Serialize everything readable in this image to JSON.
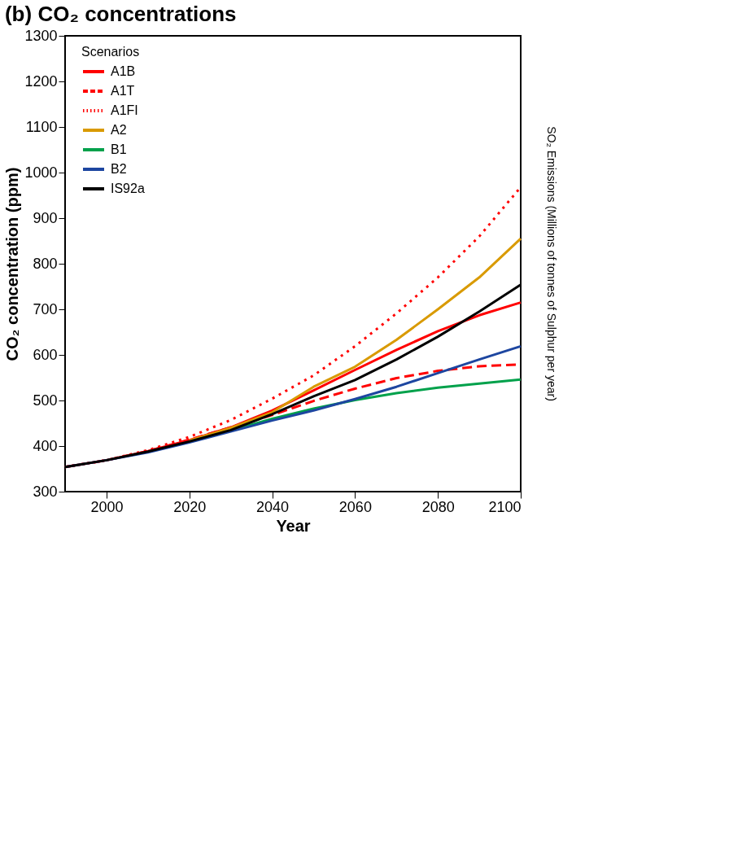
{
  "chart_data": {
    "type": "line",
    "title": "(b) CO₂ concentrations",
    "xlabel": "Year",
    "ylabel": "CO₂ concentration (ppm)",
    "annotations": [
      "SO₂ Emissions (Millions of tonnes of Sulphur per year)"
    ],
    "x": [
      1990,
      2000,
      2010,
      2020,
      2030,
      2040,
      2050,
      2060,
      2070,
      2080,
      2090,
      2100
    ],
    "xlim": [
      1990,
      2100
    ],
    "xticks": [
      2000,
      2020,
      2040,
      2060,
      2080,
      2100
    ],
    "ylim": [
      300,
      1300
    ],
    "yticks": [
      300,
      400,
      500,
      600,
      700,
      800,
      900,
      1000,
      1100,
      1200,
      1300
    ],
    "grid": false,
    "legend": "top left",
    "legend_title": "Scenarios",
    "marker": "none",
    "series": [
      {
        "name": "A1B",
        "color": "#ff0000",
        "line_style": "solid",
        "values": [
          354,
          369,
          389,
          413,
          441,
          478,
          522,
          567,
          611,
          652,
          687,
          715
        ]
      },
      {
        "name": "A1T",
        "color": "#ff0000",
        "line_style": "dashed",
        "values": [
          354,
          369,
          389,
          414,
          441,
          468,
          499,
          526,
          549,
          565,
          575,
          579
        ]
      },
      {
        "name": "A1FI",
        "color": "#ff0000",
        "line_style": "dotted",
        "values": [
          354,
          369,
          391,
          420,
          457,
          504,
          555,
          619,
          691,
          770,
          860,
          968
        ]
      },
      {
        "name": "A2",
        "color": "#d99a00",
        "line_style": "solid",
        "values": [
          null,
          null,
          null,
          412,
          440,
          474,
          530,
          574,
          633,
          700,
          770,
          855
        ]
      },
      {
        "name": "B1",
        "color": "#00a14b",
        "line_style": "solid",
        "values": [
          null,
          null,
          null,
          null,
          434,
          460,
          482,
          501,
          516,
          528,
          537,
          546
        ]
      },
      {
        "name": "B2",
        "color": "#1d46a0",
        "line_style": "solid",
        "values": [
          354,
          369,
          386,
          408,
          432,
          456,
          478,
          503,
          530,
          560,
          590,
          619
        ]
      },
      {
        "name": "IS92a",
        "color": "#000000",
        "line_style": "solid",
        "values": [
          354,
          369,
          388,
          410,
          435,
          470,
          509,
          545,
          590,
          640,
          695,
          754
        ]
      }
    ]
  }
}
